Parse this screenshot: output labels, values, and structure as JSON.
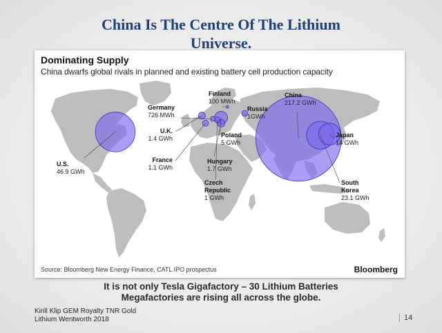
{
  "slide": {
    "title_line1": "China Is The Centre Of The Lithium",
    "title_line2": "Universe.",
    "caption_line1": "It is not only Tesla Gigafactory – 30 Lithium Batteries",
    "caption_line2": "Megafactories are rising all across the globe.",
    "footer_line1": "Kirill Klip GEM Royalty TNR Gold",
    "footer_line2": "Lithium Wentworth 2018",
    "page_number": "14"
  },
  "chart_data": {
    "type": "bubble-map",
    "title": "Dominating Supply",
    "subtitle": "China dwarfs global rivals in planned and existing battery cell production capacity",
    "source": "Source: Bloomberg New Energy Finance, CATL IPO prospectus",
    "brand": "Bloomberg",
    "unit": "GWh",
    "bubble_color": "#7b68ee",
    "points": [
      {
        "country": "China",
        "value_label": "217.2 GWh",
        "value_gwh": 217.2,
        "lon": 104,
        "lat": 33
      },
      {
        "country": "U.S.",
        "value_label": "46.9 GWh",
        "value_gwh": 46.9,
        "lon": -97,
        "lat": 39
      },
      {
        "country": "South Korea",
        "value_label": "23.1 GWh",
        "value_gwh": 23.1,
        "lon": 128,
        "lat": 36
      },
      {
        "country": "Japan",
        "value_label": "14 GWh",
        "value_gwh": 14,
        "lon": 138,
        "lat": 37
      },
      {
        "country": "Poland",
        "value_label": "5 GWh",
        "value_gwh": 5,
        "lon": 19,
        "lat": 52
      },
      {
        "country": "Hungary",
        "value_label": "1.7 GWh",
        "value_gwh": 1.7,
        "lon": 19,
        "lat": 47
      },
      {
        "country": "U.K.",
        "value_label": "1.4 GWh",
        "value_gwh": 1.4,
        "lon": -2,
        "lat": 54
      },
      {
        "country": "France",
        "value_label": "1.1 GWh",
        "value_gwh": 1.1,
        "lon": 2,
        "lat": 47
      },
      {
        "country": "Russia",
        "value_label": "1GWh",
        "value_gwh": 1,
        "lon": 45,
        "lat": 56
      },
      {
        "country": "Czech Republic",
        "value_label": "1 GWh",
        "value_gwh": 1,
        "lon": 15,
        "lat": 50
      },
      {
        "country": "Germany",
        "value_label": "726 MWh",
        "value_gwh": 0.726,
        "lon": 10,
        "lat": 51
      },
      {
        "country": "Finland",
        "value_label": "100 MWh",
        "value_gwh": 0.1,
        "lon": 26,
        "lat": 62
      }
    ]
  }
}
